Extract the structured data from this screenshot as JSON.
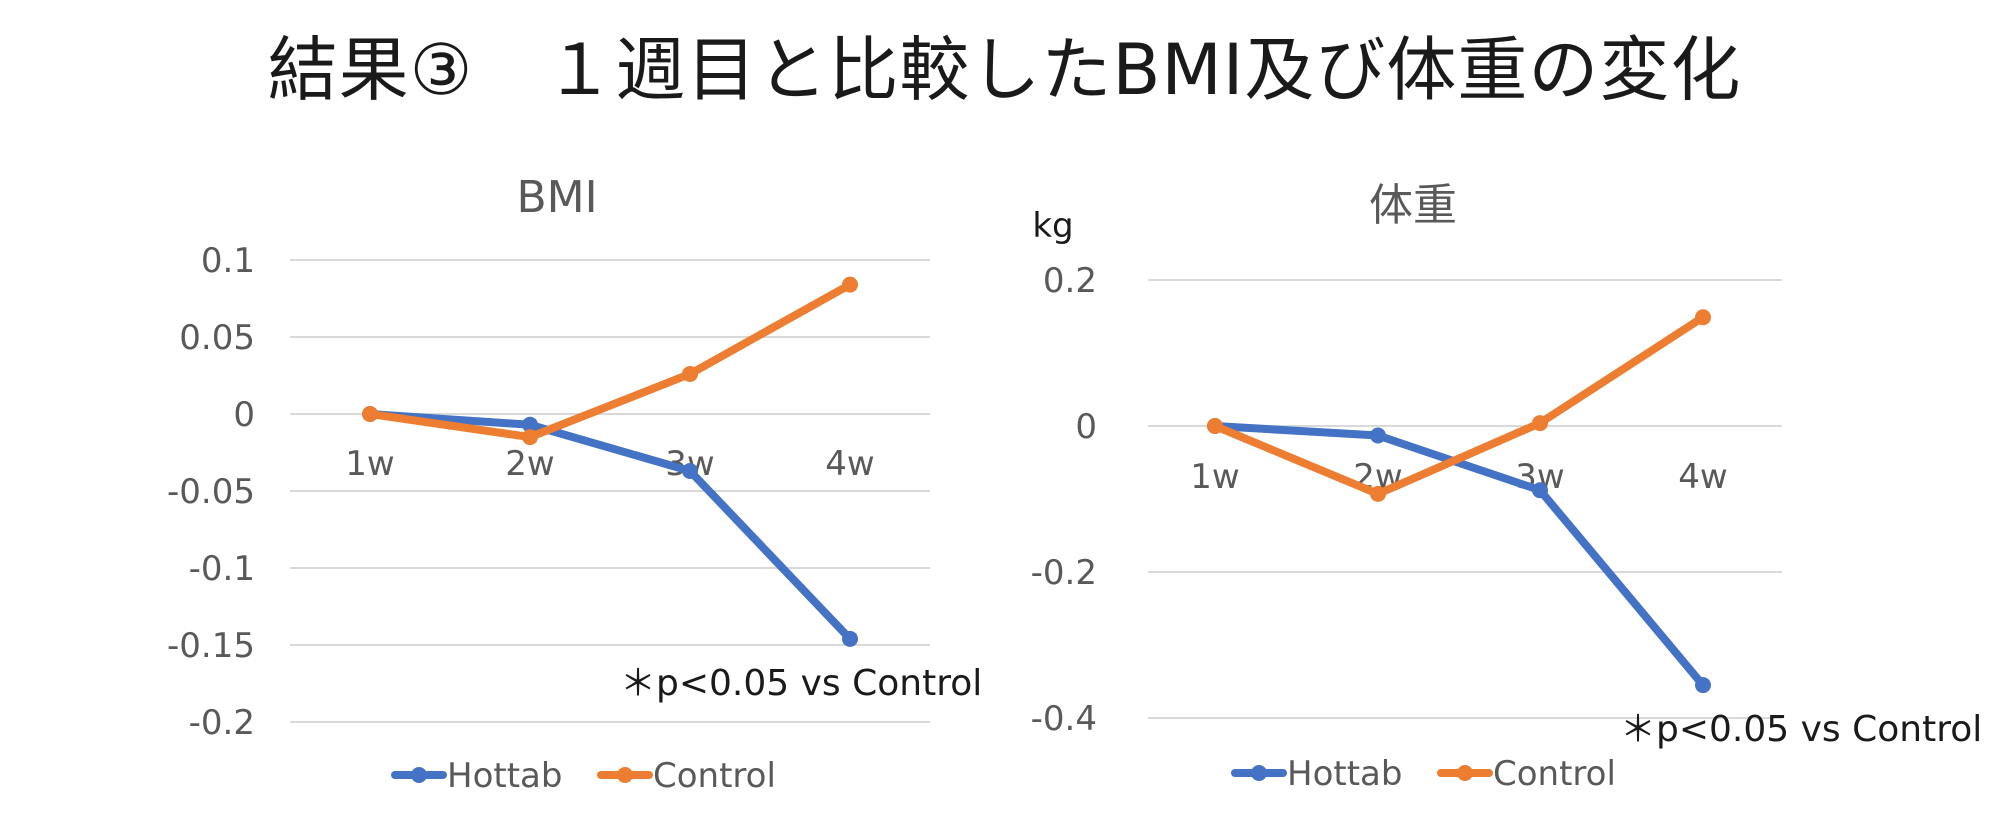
{
  "slide": {
    "title": "結果③　１週目と比較したBMI及び体重の変化"
  },
  "colors": {
    "hottab": "#4472C4",
    "control": "#ED7D31",
    "grid": "#D9D9D9",
    "text": "#595959"
  },
  "chart_data": [
    {
      "type": "line",
      "title": "BMI",
      "categories": [
        "1w",
        "2w",
        "3w",
        "4w"
      ],
      "series": [
        {
          "name": "Hottab",
          "values": [
            0,
            -0.007,
            -0.037,
            -0.146
          ]
        },
        {
          "name": "Control",
          "values": [
            0,
            -0.015,
            0.026,
            0.084
          ]
        }
      ],
      "ylim": [
        -0.2,
        0.1
      ],
      "yticks": [
        0.1,
        0.05,
        0,
        -0.05,
        -0.1,
        -0.15,
        -0.2
      ],
      "ytick_labels": [
        "0.1",
        "0.05",
        "0",
        "-0.05",
        "-0.1",
        "-0.15",
        "-0.2"
      ],
      "ylabel": "",
      "xlabel": "",
      "annotation": "＊p<0.05 vs Control",
      "legend": [
        "Hottab",
        "Control"
      ]
    },
    {
      "type": "line",
      "title": "体重",
      "categories": [
        "1w",
        "2w",
        "3w",
        "4w"
      ],
      "series": [
        {
          "name": "Hottab",
          "values": [
            0,
            -0.013,
            -0.088,
            -0.355
          ]
        },
        {
          "name": "Control",
          "values": [
            0,
            -0.093,
            0.004,
            0.149
          ]
        }
      ],
      "ylim": [
        -0.4,
        0.2
      ],
      "yticks": [
        0.2,
        0,
        -0.2,
        -0.4
      ],
      "ytick_labels": [
        "0.2",
        "0",
        "-0.2",
        "-0.4"
      ],
      "ylabel": "kg",
      "xlabel": "",
      "annotation": "＊p<0.05 vs Control",
      "legend": [
        "Hottab",
        "Control"
      ]
    }
  ]
}
